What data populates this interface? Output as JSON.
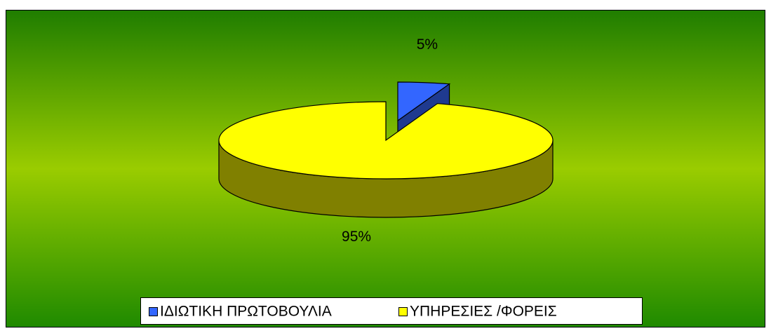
{
  "chart_data": {
    "type": "pie",
    "categories": [
      "ΙΔΙΩΤΙΚΗ ΠΡΩΤΟΒΟΥΛΙΑ",
      "ΥΠΗΡΕΣΙΕΣ /ΦΟΡΕΙΣ"
    ],
    "values": [
      5,
      95
    ],
    "value_labels": [
      "5%",
      "95%"
    ],
    "colors": [
      "#3366ff",
      "#ffff00"
    ],
    "side_colors": [
      "#1f3a8f",
      "#808000"
    ],
    "legend": "bottom"
  }
}
